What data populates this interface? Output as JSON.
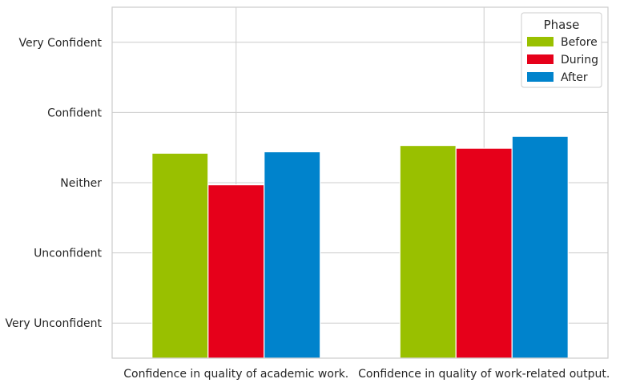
{
  "chart_data": {
    "type": "bar",
    "title": "",
    "xlabel": "",
    "ylabel": "",
    "categories": [
      "Confidence in quality of academic work.",
      "Confidence in quality of work-related output."
    ],
    "y_ticks": [
      {
        "value": 1,
        "label": "Very Unconfident"
      },
      {
        "value": 2,
        "label": "Unconfident"
      },
      {
        "value": 3,
        "label": "Neither"
      },
      {
        "value": 4,
        "label": "Confident"
      },
      {
        "value": 5,
        "label": "Very Confident"
      }
    ],
    "ylim": [
      0.5,
      5.5
    ],
    "grid": true,
    "legend": {
      "title": "Phase",
      "placement": "top-right"
    },
    "series": [
      {
        "name": "Before",
        "color": "#99c000",
        "values": [
          3.42,
          3.53
        ]
      },
      {
        "name": "During",
        "color": "#e6001a",
        "values": [
          2.97,
          3.49
        ]
      },
      {
        "name": "After",
        "color": "#0083cc",
        "values": [
          3.44,
          3.66
        ]
      }
    ]
  }
}
